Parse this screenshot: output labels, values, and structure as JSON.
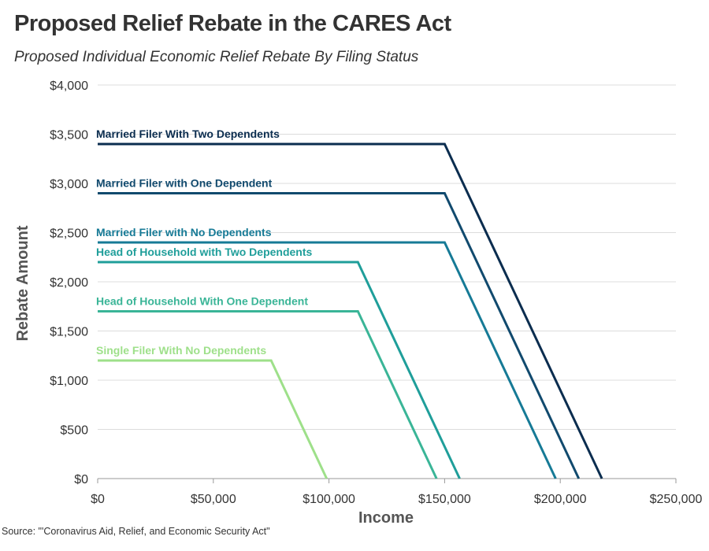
{
  "title": "Proposed Relief Rebate in the CARES Act",
  "subtitle": "Proposed Individual Economic Relief Rebate By Filing Status",
  "source": "Source: \"'Coronavirus Aid, Relief, and Economic Security Act\"",
  "chart_data": {
    "type": "line",
    "title": "Proposed Relief Rebate in the CARES Act",
    "subtitle": "Proposed Individual Economic Relief Rebate By Filing Status",
    "xlabel": "Income",
    "ylabel": "Rebate Amount",
    "xlim": [
      0,
      250000
    ],
    "ylim": [
      0,
      4000
    ],
    "x_ticks": [
      0,
      50000,
      100000,
      150000,
      200000,
      250000
    ],
    "x_tick_labels": [
      "$0",
      "$50,000",
      "$100,000",
      "$150,000",
      "$200,000",
      "$250,000"
    ],
    "y_ticks": [
      0,
      500,
      1000,
      1500,
      2000,
      2500,
      3000,
      3500,
      4000
    ],
    "y_tick_labels": [
      "$0",
      "$500",
      "$1,000",
      "$1,500",
      "$2,000",
      "$2,500",
      "$3,000",
      "$3,500",
      "$4,000"
    ],
    "grid": "horizontal",
    "legend": "inline labels",
    "series": [
      {
        "name": "Married Filer With Two Dependents",
        "color": "#0b2d4f",
        "x": [
          0,
          150000,
          218000
        ],
        "y": [
          3400,
          3400,
          0
        ]
      },
      {
        "name": "Married Filer with One Dependent",
        "color": "#114a6e",
        "x": [
          0,
          150000,
          208000
        ],
        "y": [
          2900,
          2900,
          0
        ]
      },
      {
        "name": "Married Filer with No Dependents",
        "color": "#167a96",
        "x": [
          0,
          150000,
          198000
        ],
        "y": [
          2400,
          2400,
          0
        ]
      },
      {
        "name": "Head of Household with Two Dependents",
        "color": "#1f9e9a",
        "x": [
          0,
          112500,
          156500
        ],
        "y": [
          2200,
          2200,
          0
        ]
      },
      {
        "name": "Head of Household With One Dependent",
        "color": "#3ab597",
        "x": [
          0,
          112500,
          146500
        ],
        "y": [
          1700,
          1700,
          0
        ]
      },
      {
        "name": "Single Filer With No Dependents",
        "color": "#9ee08a",
        "x": [
          0,
          75000,
          99000
        ],
        "y": [
          1200,
          1200,
          0
        ]
      }
    ]
  }
}
